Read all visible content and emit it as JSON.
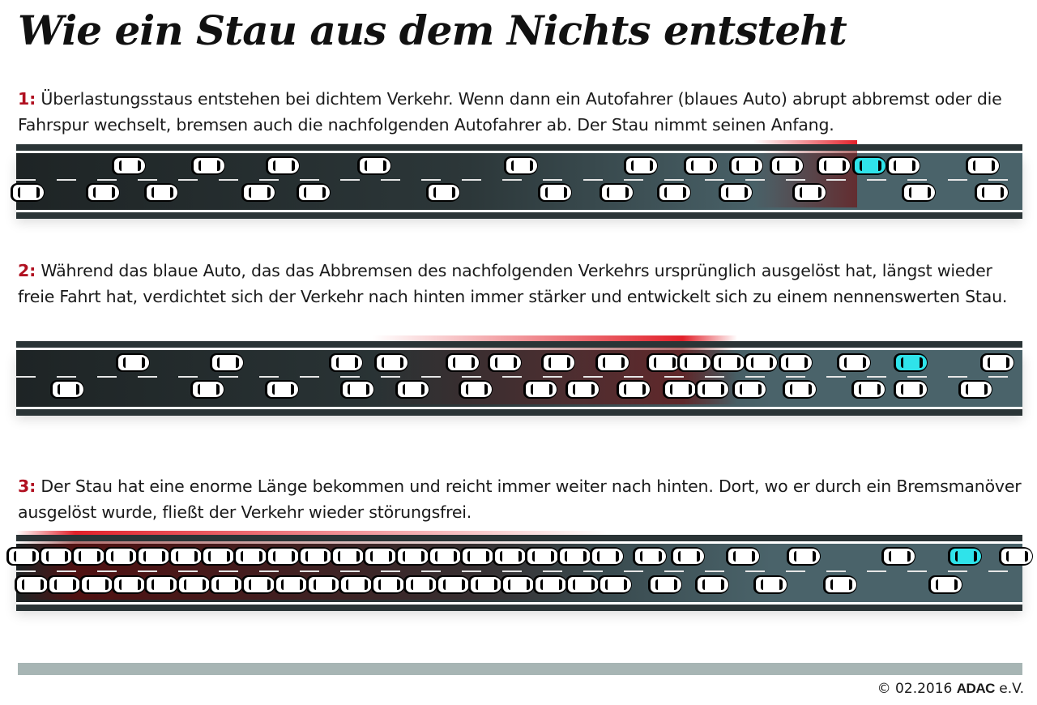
{
  "title": "Wie ein Stau aus dem Nichts entsteht",
  "steps": [
    {
      "num": "1:",
      "text": "Überlastungsstaus entstehen bei dichtem Verkehr. Wenn dann ein Autofahrer (blaues Auto) abrupt abbremst oder die Fahrspur wechselt, bremsen auch die nachfolgenden Autofahrer ab. Der Stau nimmt seinen Anfang."
    },
    {
      "num": "2:",
      "text": "Während das blaue Auto, das das Abbremsen des nachfolgenden Verkehrs ursprünglich ausgelöst hat, längst wieder freie Fahrt hat, verdichtet sich der Verkehr nach hinten immer stärker und entwickelt sich zu einem nennenswerten Stau."
    },
    {
      "num": "3:",
      "text": "Der Stau hat eine enorme Länge bekommen und reicht immer weiter nach hinten. Dort, wo er durch ein Bremsmanöver ausgelöst wurde, fließt der Verkehr wieder störungsfrei."
    }
  ],
  "footer": {
    "date": "© 02.2016",
    "brand": "ADAC",
    "suffix": "e.V."
  },
  "colors": {
    "jam": "#e0151f",
    "blue_car": "#2fe3ea",
    "number": "#b01020"
  }
}
